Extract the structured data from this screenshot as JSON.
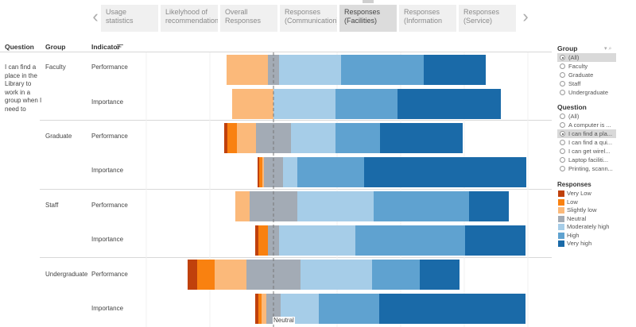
{
  "tabs": {
    "items": [
      {
        "label": "Usage statistics",
        "active": false
      },
      {
        "label": "Likelyhood of recommendation",
        "active": false
      },
      {
        "label": "Overall Responses",
        "active": false
      },
      {
        "label": "Responses (Communication)",
        "active": false
      },
      {
        "label": "Responses (Facilities)",
        "active": true
      },
      {
        "label": "Responses (Information",
        "active": false
      },
      {
        "label": "Responses (Service)",
        "active": false
      }
    ],
    "prev_icon": "chevron-left-icon",
    "next_icon": "chevron-right-icon"
  },
  "table": {
    "question_header": "Question",
    "group_header": "Group",
    "indicator_header": "Indicator",
    "question_text": "I can find a place in the Library to work in a group when I need to"
  },
  "chart_data": {
    "type": "bar",
    "stacked": "diverging",
    "reference_line_label": "Neutral",
    "rows": [
      {
        "group": "Faculty",
        "indicator": "Performance",
        "values": [
          0,
          0,
          13,
          3.5,
          19.5,
          26,
          19.5
        ]
      },
      {
        "group": "Faculty",
        "indicator": "Importance",
        "values": [
          0,
          0,
          13,
          0,
          19.5,
          19.5,
          32.5
        ]
      },
      {
        "group": "Graduate",
        "indicator": "Performance",
        "values": [
          1,
          3,
          6,
          11,
          14,
          14,
          26
        ]
      },
      {
        "group": "Graduate",
        "indicator": "Importance",
        "values": [
          0.5,
          1,
          0.5,
          6,
          4.5,
          21,
          51
        ]
      },
      {
        "group": "Staff",
        "indicator": "Performance",
        "values": [
          0,
          0,
          4.5,
          15,
          24,
          30,
          12.5
        ]
      },
      {
        "group": "Staff",
        "indicator": "Importance",
        "values": [
          1,
          3,
          0,
          3.5,
          24,
          34.5,
          19
        ]
      },
      {
        "group": "Undergraduate",
        "indicator": "Performance",
        "values": [
          3,
          5.5,
          10,
          17,
          22.5,
          15,
          12.5
        ]
      },
      {
        "group": "Undergraduate",
        "indicator": "Importance",
        "values": [
          1,
          1,
          1.5,
          4.5,
          12,
          19,
          46
        ]
      }
    ],
    "series": [
      {
        "name": "Very Low",
        "color": "#c0410c"
      },
      {
        "name": "Low",
        "color": "#f98110"
      },
      {
        "name": "Slightly low",
        "color": "#fbb97a"
      },
      {
        "name": "Neutral",
        "color": "#a3abb5"
      },
      {
        "name": "Moderately high",
        "color": "#a6cde8"
      },
      {
        "name": "High",
        "color": "#5fa2d0"
      },
      {
        "name": "Very high",
        "color": "#1a6aa8"
      }
    ]
  },
  "filters": {
    "group": {
      "title": "Group",
      "options": [
        {
          "label": "(All)",
          "selected": true
        },
        {
          "label": "Faculty",
          "selected": false
        },
        {
          "label": "Graduate",
          "selected": false
        },
        {
          "label": "Staff",
          "selected": false
        },
        {
          "label": "Undergraduate",
          "selected": false
        }
      ]
    },
    "question": {
      "title": "Question",
      "options": [
        {
          "label": "(All)",
          "selected": false
        },
        {
          "label": "A computer is ...",
          "selected": false
        },
        {
          "label": "I can find a pla...",
          "selected": true
        },
        {
          "label": "I can find a qui...",
          "selected": false
        },
        {
          "label": "I can get wirel...",
          "selected": false
        },
        {
          "label": "Laptop faciliti...",
          "selected": false
        },
        {
          "label": "Printing, scann...",
          "selected": false
        }
      ]
    },
    "legend_title": "Responses"
  }
}
